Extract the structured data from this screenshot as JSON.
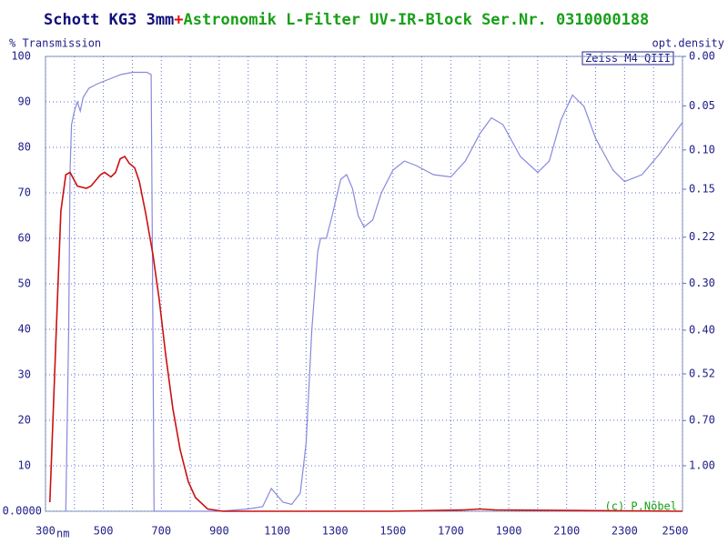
{
  "chart_data": {
    "type": "line",
    "title_parts": [
      {
        "text": "Schott KG3 3mm",
        "color": "#10107a"
      },
      {
        "text": "+",
        "color": "#e01010"
      },
      {
        "text": "Astronomik L-Filter UV-IR-Block Ser.Nr. 0310000188",
        "color": "#18a018"
      }
    ],
    "y_label": "% Transmission",
    "y2_label": "opt.density",
    "x_unit": "nm",
    "box_label": "Zeiss M4 QIII",
    "credit": "(c) P.Nöbel",
    "xlim": [
      300,
      2500
    ],
    "xticks": [
      300,
      500,
      700,
      900,
      1100,
      1300,
      1500,
      1700,
      1900,
      2100,
      2300,
      2500
    ],
    "xminor": [
      400,
      600,
      800,
      1000,
      1200,
      1400,
      1600,
      1800,
      2000,
      2200,
      2400
    ],
    "ylim": [
      0,
      100
    ],
    "yticks": [
      {
        "value": 0,
        "label": "0.0000"
      },
      10,
      20,
      30,
      40,
      50,
      60,
      70,
      80,
      90,
      100
    ],
    "y2scale": "density",
    "y2ticks": [
      {
        "value": 0,
        "label": "0.00"
      },
      0.05,
      {
        "value": 0.1,
        "label": "0.10"
      },
      0.15,
      0.22,
      {
        "value": 0.3,
        "label": "0.30"
      },
      {
        "value": 0.4,
        "label": "0.40"
      },
      0.52,
      {
        "value": 0.7,
        "label": "0.70"
      },
      {
        "value": 1,
        "label": "1.00"
      }
    ],
    "grid": true,
    "series": [
      {
        "color": "#8888dd",
        "x": [
          370,
          380,
          385,
          390,
          400,
          410,
          420,
          430,
          450,
          480,
          520,
          560,
          600,
          650,
          665,
          670,
          675,
          700,
          800,
          900,
          1000,
          1050,
          1080,
          1120,
          1150,
          1180,
          1200,
          1220,
          1240,
          1250,
          1270,
          1290,
          1320,
          1340,
          1360,
          1380,
          1400,
          1430,
          1460,
          1500,
          1540,
          1580,
          1640,
          1700,
          1750,
          1800,
          1840,
          1880,
          1940,
          2000,
          2040,
          2080,
          2120,
          2160,
          2200,
          2260,
          2300,
          2360,
          2420,
          2500
        ],
        "values": [
          0,
          40,
          75,
          85,
          88,
          90,
          88,
          91,
          93,
          94,
          95,
          96,
          96.5,
          96.5,
          96,
          50,
          0,
          0,
          0,
          0,
          0.5,
          1,
          5,
          2,
          1.5,
          4,
          15,
          40,
          57,
          60,
          60,
          65,
          73,
          74,
          71,
          65,
          62.5,
          64,
          70,
          75,
          77,
          76,
          74,
          73.5,
          77,
          83,
          86.5,
          85,
          78,
          74.5,
          77,
          86,
          91.5,
          89,
          82,
          75,
          72.5,
          74,
          78.5,
          85.5
        ]
      },
      {
        "color": "#cc1010",
        "x": [
          315,
          341,
          353,
          370,
          385,
          410,
          441,
          457,
          490,
          504,
          526,
          542,
          558,
          574,
          589,
          608,
          624,
          646,
          671,
          693,
          715,
          740,
          765,
          793,
          818,
          860,
          913,
          1500,
          1750,
          1800,
          1850,
          2500
        ],
        "values": [
          2,
          46,
          66,
          74,
          74.5,
          71.5,
          71,
          71.5,
          74,
          74.5,
          73.5,
          74.5,
          77.5,
          78,
          76.5,
          75.5,
          72.5,
          65.5,
          56.5,
          46.5,
          34.5,
          22.5,
          13.5,
          6.5,
          3,
          0.5,
          0,
          0,
          0.3,
          0.5,
          0.3,
          0
        ]
      }
    ]
  }
}
